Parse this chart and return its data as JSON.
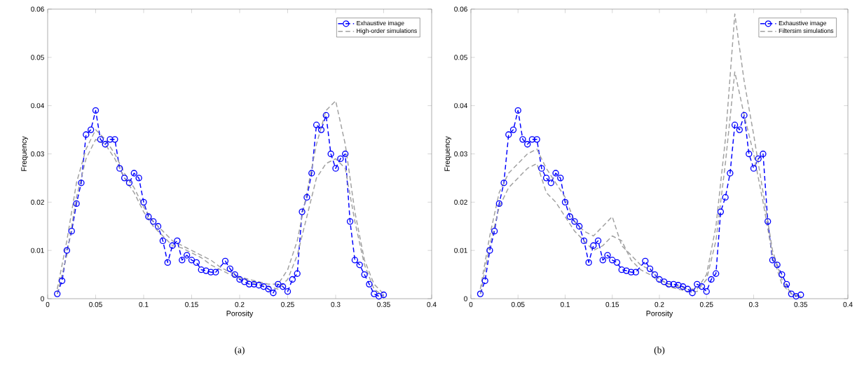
{
  "chart_data": [
    {
      "type": "line",
      "xlabel": "Porosity",
      "ylabel": "Frequency",
      "annotations": [
        "(a)"
      ],
      "xlim": [
        0,
        0.4
      ],
      "ylim": [
        0,
        0.06
      ],
      "xticks": [
        0,
        0.05,
        0.1,
        0.15,
        0.2,
        0.25,
        0.3,
        0.35,
        0.4
      ],
      "yticks": [
        0,
        0.01,
        0.02,
        0.03,
        0.04,
        0.05,
        0.06
      ],
      "legend": "top right",
      "series": [
        {
          "name": "Exhaustive image",
          "color": "#0000ff",
          "marker": "circle",
          "line_style": "dashed",
          "x": [
            0.01,
            0.015,
            0.02,
            0.025,
            0.03,
            0.035,
            0.04,
            0.045,
            0.05,
            0.055,
            0.06,
            0.065,
            0.07,
            0.075,
            0.08,
            0.085,
            0.09,
            0.095,
            0.1,
            0.105,
            0.11,
            0.115,
            0.12,
            0.125,
            0.13,
            0.135,
            0.14,
            0.145,
            0.15,
            0.155,
            0.16,
            0.165,
            0.17,
            0.175,
            0.185,
            0.19,
            0.195,
            0.2,
            0.205,
            0.21,
            0.215,
            0.22,
            0.225,
            0.23,
            0.235,
            0.24,
            0.245,
            0.25,
            0.255,
            0.26,
            0.265,
            0.27,
            0.275,
            0.28,
            0.285,
            0.29,
            0.295,
            0.3,
            0.305,
            0.31,
            0.315,
            0.32,
            0.325,
            0.33,
            0.335,
            0.34,
            0.345,
            0.35
          ],
          "values": [
            0.001,
            0.0037,
            0.01,
            0.014,
            0.0197,
            0.024,
            0.034,
            0.035,
            0.039,
            0.033,
            0.032,
            0.033,
            0.033,
            0.027,
            0.025,
            0.024,
            0.026,
            0.025,
            0.02,
            0.017,
            0.016,
            0.015,
            0.012,
            0.0075,
            0.011,
            0.012,
            0.008,
            0.009,
            0.008,
            0.0075,
            0.006,
            0.0058,
            0.0055,
            0.0055,
            0.0078,
            0.0062,
            0.005,
            0.004,
            0.0035,
            0.003,
            0.003,
            0.0028,
            0.0025,
            0.002,
            0.0012,
            0.003,
            0.0025,
            0.0015,
            0.004,
            0.0052,
            0.018,
            0.021,
            0.026,
            0.036,
            0.035,
            0.038,
            0.03,
            0.027,
            0.029,
            0.03,
            0.016,
            0.008,
            0.007,
            0.005,
            0.003,
            0.001,
            0.0005,
            0.0008
          ]
        },
        {
          "name": "High-order simulations",
          "color": "#a0a0a0",
          "marker": "none",
          "line_style": "dashed",
          "x": [
            0.01,
            0.02,
            0.03,
            0.04,
            0.05,
            0.06,
            0.07,
            0.08,
            0.09,
            0.1,
            0.11,
            0.12,
            0.13,
            0.14,
            0.15,
            0.16,
            0.17,
            0.18,
            0.19,
            0.2,
            0.21,
            0.22,
            0.23,
            0.24,
            0.25,
            0.26,
            0.27,
            0.28,
            0.29,
            0.3,
            0.31,
            0.32,
            0.33,
            0.34,
            0.35
          ],
          "values": [
            0.002,
            0.012,
            0.024,
            0.031,
            0.035,
            0.033,
            0.03,
            0.026,
            0.023,
            0.019,
            0.016,
            0.014,
            0.012,
            0.011,
            0.01,
            0.009,
            0.008,
            0.0065,
            0.0055,
            0.0045,
            0.004,
            0.0035,
            0.003,
            0.003,
            0.006,
            0.012,
            0.022,
            0.032,
            0.039,
            0.041,
            0.032,
            0.018,
            0.008,
            0.003,
            0.001
          ]
        },
        {
          "color": "#a0a0a0",
          "marker": "none",
          "line_style": "dashed",
          "x": [
            0.01,
            0.02,
            0.03,
            0.04,
            0.05,
            0.06,
            0.07,
            0.08,
            0.09,
            0.1,
            0.11,
            0.12,
            0.13,
            0.14,
            0.15,
            0.16,
            0.17,
            0.18,
            0.19,
            0.2,
            0.21,
            0.22,
            0.23,
            0.24,
            0.25,
            0.26,
            0.27,
            0.28,
            0.29,
            0.3,
            0.31,
            0.32,
            0.33,
            0.34,
            0.35
          ],
          "values": [
            0.001,
            0.009,
            0.021,
            0.029,
            0.033,
            0.032,
            0.029,
            0.025,
            0.022,
            0.018,
            0.015,
            0.013,
            0.011,
            0.0105,
            0.0095,
            0.0085,
            0.007,
            0.006,
            0.005,
            0.0042,
            0.0037,
            0.003,
            0.0025,
            0.002,
            0.004,
            0.009,
            0.017,
            0.025,
            0.028,
            0.029,
            0.027,
            0.016,
            0.007,
            0.002,
            0.0005
          ]
        }
      ]
    },
    {
      "type": "line",
      "xlabel": "Porosity",
      "ylabel": "Frequency",
      "annotations": [
        "(b)"
      ],
      "xlim": [
        0,
        0.4
      ],
      "ylim": [
        0,
        0.06
      ],
      "xticks": [
        0,
        0.05,
        0.1,
        0.15,
        0.2,
        0.25,
        0.3,
        0.35,
        0.4
      ],
      "yticks": [
        0,
        0.01,
        0.02,
        0.03,
        0.04,
        0.05,
        0.06
      ],
      "legend": "top right",
      "series": [
        {
          "name": "Exhaustive image",
          "color": "#0000ff",
          "marker": "circle",
          "line_style": "dashed",
          "x": [
            0.01,
            0.015,
            0.02,
            0.025,
            0.03,
            0.035,
            0.04,
            0.045,
            0.05,
            0.055,
            0.06,
            0.065,
            0.07,
            0.075,
            0.08,
            0.085,
            0.09,
            0.095,
            0.1,
            0.105,
            0.11,
            0.115,
            0.12,
            0.125,
            0.13,
            0.135,
            0.14,
            0.145,
            0.15,
            0.155,
            0.16,
            0.165,
            0.17,
            0.175,
            0.185,
            0.19,
            0.195,
            0.2,
            0.205,
            0.21,
            0.215,
            0.22,
            0.225,
            0.23,
            0.235,
            0.24,
            0.245,
            0.25,
            0.255,
            0.26,
            0.265,
            0.27,
            0.275,
            0.28,
            0.285,
            0.29,
            0.295,
            0.3,
            0.305,
            0.31,
            0.315,
            0.32,
            0.325,
            0.33,
            0.335,
            0.34,
            0.345,
            0.35
          ],
          "values": [
            0.001,
            0.0037,
            0.01,
            0.014,
            0.0197,
            0.024,
            0.034,
            0.035,
            0.039,
            0.033,
            0.032,
            0.033,
            0.033,
            0.027,
            0.025,
            0.024,
            0.026,
            0.025,
            0.02,
            0.017,
            0.016,
            0.015,
            0.012,
            0.0075,
            0.011,
            0.012,
            0.008,
            0.009,
            0.008,
            0.0075,
            0.006,
            0.0058,
            0.0055,
            0.0055,
            0.0078,
            0.0062,
            0.005,
            0.004,
            0.0035,
            0.003,
            0.003,
            0.0028,
            0.0025,
            0.002,
            0.0012,
            0.003,
            0.0025,
            0.0015,
            0.004,
            0.0052,
            0.018,
            0.021,
            0.026,
            0.036,
            0.035,
            0.038,
            0.03,
            0.027,
            0.029,
            0.03,
            0.016,
            0.008,
            0.007,
            0.005,
            0.003,
            0.001,
            0.0005,
            0.0008
          ]
        },
        {
          "name": "Filtersim simulations",
          "color": "#a0a0a0",
          "marker": "none",
          "line_style": "dashed",
          "x": [
            0.01,
            0.02,
            0.03,
            0.04,
            0.05,
            0.06,
            0.07,
            0.08,
            0.09,
            0.1,
            0.11,
            0.12,
            0.13,
            0.14,
            0.15,
            0.16,
            0.17,
            0.18,
            0.19,
            0.2,
            0.21,
            0.22,
            0.23,
            0.24,
            0.25,
            0.26,
            0.27,
            0.28,
            0.29,
            0.3,
            0.31,
            0.32,
            0.33,
            0.34,
            0.35
          ],
          "values": [
            0.002,
            0.013,
            0.022,
            0.026,
            0.028,
            0.03,
            0.031,
            0.027,
            0.024,
            0.021,
            0.016,
            0.014,
            0.013,
            0.015,
            0.017,
            0.011,
            0.009,
            0.007,
            0.006,
            0.004,
            0.003,
            0.0025,
            0.002,
            0.002,
            0.005,
            0.015,
            0.033,
            0.059,
            0.045,
            0.034,
            0.022,
            0.01,
            0.004,
            0.001,
            0.0005
          ]
        },
        {
          "color": "#a0a0a0",
          "marker": "none",
          "line_style": "dashed",
          "x": [
            0.01,
            0.02,
            0.03,
            0.04,
            0.05,
            0.06,
            0.07,
            0.08,
            0.09,
            0.1,
            0.11,
            0.12,
            0.13,
            0.14,
            0.15,
            0.16,
            0.17,
            0.18,
            0.19,
            0.2,
            0.21,
            0.22,
            0.23,
            0.24,
            0.25,
            0.26,
            0.27,
            0.28,
            0.29,
            0.3,
            0.31,
            0.32,
            0.33,
            0.34,
            0.35
          ],
          "values": [
            0.001,
            0.011,
            0.019,
            0.023,
            0.025,
            0.027,
            0.028,
            0.022,
            0.02,
            0.017,
            0.014,
            0.012,
            0.01,
            0.011,
            0.013,
            0.012,
            0.008,
            0.006,
            0.005,
            0.0035,
            0.0025,
            0.002,
            0.0015,
            0.0015,
            0.004,
            0.012,
            0.028,
            0.047,
            0.038,
            0.03,
            0.02,
            0.009,
            0.003,
            0.001,
            0.0003
          ]
        }
      ]
    }
  ]
}
